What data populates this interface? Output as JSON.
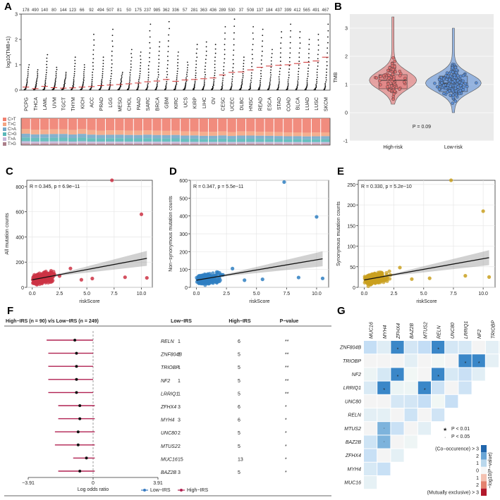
{
  "panels": {
    "A": "A",
    "B": "B",
    "C": "C",
    "D": "D",
    "E": "E",
    "F": "F",
    "G": "G"
  },
  "chart_data": [
    {
      "id": "A",
      "type": "scatter",
      "ylabel": "log10(TMB+1)",
      "ylim": [
        0,
        3
      ],
      "yticks": [
        "0",
        "1",
        "2",
        "3"
      ],
      "highlight": "KIRC",
      "categories": [
        "PCPG",
        "THCA",
        "LAML",
        "UVM",
        "TGCT",
        "THYM",
        "KICH",
        "ACC",
        "PRAD",
        "LGG",
        "MESO",
        "CHOL",
        "PAAD",
        "SARC",
        "BRCA",
        "GBM",
        "KIRC",
        "UCS",
        "KIRP",
        "LIHC",
        "OV",
        "CESC",
        "UCEC",
        "DLBC",
        "HNSC",
        "READ",
        "ESCA",
        "STAD",
        "COAD",
        "BLCA",
        "LUAD",
        "LUSC",
        "SKCM"
      ],
      "counts": [
        "178",
        "490",
        "140",
        "80",
        "144",
        "123",
        "66",
        "92",
        "494",
        "507",
        "81",
        "50",
        "175",
        "237",
        "985",
        "362",
        "336",
        "57",
        "281",
        "363",
        "436",
        "289",
        "530",
        "37",
        "508",
        "137",
        "184",
        "437",
        "399",
        "412",
        "565",
        "491",
        "467"
      ],
      "medians": [
        0.12,
        0.06,
        0.15,
        0.1,
        0.08,
        0.09,
        0.12,
        0.14,
        0.18,
        0.2,
        0.22,
        0.25,
        0.28,
        0.33,
        0.36,
        0.42,
        0.35,
        0.4,
        0.42,
        0.45,
        0.48,
        0.6,
        0.7,
        0.72,
        0.8,
        0.9,
        0.95,
        0.98,
        1.0,
        1.05,
        1.1,
        1.15,
        1.3
      ],
      "maxes": [
        1.0,
        0.8,
        1.4,
        0.9,
        0.7,
        1.3,
        1.0,
        2.2,
        1.3,
        2.4,
        0.7,
        1.6,
        1.5,
        2.6,
        1.9,
        2.7,
        1.5,
        1.1,
        1.8,
        1.9,
        1.8,
        2.5,
        2.8,
        1.3,
        2.5,
        2.4,
        1.6,
        2.3,
        2.6,
        2.3,
        2.0,
        2.2,
        2.6
      ],
      "mut_legend": [
        "C>T",
        "T>C",
        "C>A",
        "C>G",
        "T>A",
        "T>G"
      ],
      "mut_colors": [
        "#f08070",
        "#f4a582",
        "#77a9c8",
        "#59b8b8",
        "#c6b5d8",
        "#ab7f8a"
      ]
    },
    {
      "id": "B",
      "type": "violin",
      "ylabel": "TMB",
      "ylim": [
        -1,
        3.5
      ],
      "yticks": [
        "-1",
        "0",
        "1",
        "2",
        "3"
      ],
      "categories": [
        "High-risk",
        "Low-risk"
      ],
      "colors": [
        "#e07070",
        "#5b8ed6"
      ],
      "medians": [
        1.15,
        1.05
      ],
      "q1": [
        0.85,
        0.75
      ],
      "q3": [
        1.35,
        1.3
      ],
      "min": [
        0.3,
        0.0
      ],
      "max": [
        3.4,
        3.0
      ],
      "pvalue": "P = 0.09"
    },
    {
      "id": "C",
      "type": "scatter",
      "ylabel": "All mutation counts",
      "xlabel": "riskScore",
      "annotation": "R = 0.345, p = 6.9e−11",
      "color": "#cc3344",
      "xlim": [
        -0.5,
        11
      ],
      "ylim": [
        0,
        850
      ],
      "xticks": [
        "0.0",
        "2.5",
        "5.0",
        "7.5",
        "10.0"
      ],
      "xtick_vals": [
        0,
        2.5,
        5,
        7.5,
        10
      ],
      "yticks": [
        "0",
        "200",
        "400",
        "600",
        "800"
      ],
      "ytick_vals": [
        0,
        200,
        400,
        600,
        800
      ],
      "fit": [
        [
          0,
          60
        ],
        [
          10.5,
          230
        ]
      ],
      "outliers": [
        [
          7.3,
          850
        ],
        [
          10.0,
          580
        ],
        [
          10.5,
          75
        ],
        [
          8.5,
          80
        ],
        [
          5.5,
          70
        ],
        [
          4.5,
          60
        ],
        [
          3.5,
          150
        ],
        [
          2.5,
          90
        ]
      ]
    },
    {
      "id": "D",
      "type": "scatter",
      "ylabel": "Non−synonymous mutation counts",
      "xlabel": "riskScore",
      "annotation": "R = 0.347, p = 5.5e−11",
      "color": "#2f7fc1",
      "xlim": [
        -0.5,
        11
      ],
      "ylim": [
        0,
        600
      ],
      "xticks": [
        "0.0",
        "2.5",
        "5.0",
        "7.5",
        "10.0"
      ],
      "xtick_vals": [
        0,
        2.5,
        5,
        7.5,
        10
      ],
      "yticks": [
        "0",
        "100",
        "200",
        "300",
        "400",
        "500",
        "600"
      ],
      "ytick_vals": [
        0,
        100,
        200,
        300,
        400,
        500,
        600
      ],
      "fit": [
        [
          0,
          40
        ],
        [
          10.5,
          160
        ]
      ],
      "outliers": [
        [
          7.3,
          590
        ],
        [
          10.0,
          395
        ],
        [
          10.5,
          50
        ],
        [
          8.5,
          55
        ],
        [
          5.5,
          45
        ],
        [
          4.0,
          40
        ],
        [
          3.0,
          105
        ],
        [
          2.2,
          70
        ]
      ]
    },
    {
      "id": "E",
      "type": "scatter",
      "ylabel": "Synonymous mutation counts",
      "xlabel": "riskScore",
      "annotation": "R = 0.330, p = 5.2e−10",
      "color": "#c9a020",
      "xlim": [
        -0.5,
        11
      ],
      "ylim": [
        0,
        260
      ],
      "xticks": [
        "0.0",
        "2.5",
        "5.0",
        "7.5",
        "10.0"
      ],
      "xtick_vals": [
        0,
        2.5,
        5,
        7.5,
        10
      ],
      "yticks": [
        "0",
        "50",
        "100",
        "150",
        "200",
        "250"
      ],
      "ytick_vals": [
        0,
        50,
        100,
        150,
        200,
        250
      ],
      "fit": [
        [
          0,
          18
        ],
        [
          10.5,
          72
        ]
      ],
      "outliers": [
        [
          7.3,
          260
        ],
        [
          10.0,
          185
        ],
        [
          10.5,
          25
        ],
        [
          8.5,
          28
        ],
        [
          5.5,
          22
        ],
        [
          4.0,
          20
        ],
        [
          3.0,
          48
        ],
        [
          2.2,
          30
        ]
      ]
    },
    {
      "id": "F",
      "type": "forest",
      "header": "High−IRS (n = 90) v/s Low−IRS (n = 249)",
      "columns": [
        "Low−IRS",
        "High−IRS",
        "P−value"
      ],
      "genes": [
        "RELN",
        "ZNF804B",
        "TRIOBP",
        "NF2",
        "LRRIQ1",
        "ZFHX4",
        "MYH4",
        "UNC80",
        "MTUS2",
        "MUC16",
        "BAZ2B"
      ],
      "low": [
        "1",
        "1",
        "1",
        "1",
        "1",
        "3",
        "3",
        "2",
        "2",
        "15",
        "3"
      ],
      "high": [
        "6",
        "5",
        "5",
        "5",
        "5",
        "6",
        "6",
        "5",
        "5",
        "13",
        "5"
      ],
      "p": [
        "**",
        "**",
        "**",
        "**",
        "**",
        "*",
        "*",
        "*",
        "*",
        "*",
        "*"
      ],
      "log_or": [
        -1.1,
        -1.0,
        -1.0,
        -1.0,
        -1.0,
        -0.8,
        -0.8,
        -0.9,
        -0.9,
        -0.4,
        -0.8
      ],
      "ci_low": [
        -2.8,
        -2.7,
        -2.7,
        -2.7,
        -2.7,
        -2.1,
        -2.1,
        -2.3,
        -2.3,
        -1.2,
        -2.1
      ],
      "ci_high": [
        0.0,
        0.0,
        0.0,
        0.0,
        0.0,
        0.1,
        0.1,
        0.1,
        0.1,
        0.1,
        0.1
      ],
      "xlim": [
        -3.91,
        3.91
      ],
      "xticks": [
        "−3.91",
        "0",
        "3.91"
      ],
      "xlabel": "Log odds ratio",
      "legend": [
        "Low−IRS",
        "High−IRS"
      ],
      "legend_colors": [
        "#3a7cc2",
        "#b02050"
      ]
    },
    {
      "id": "G",
      "type": "heatmap",
      "col_genes": [
        "MUC16",
        "MYH4",
        "ZFHX4",
        "BAZ2B",
        "MTUS2",
        "RELN",
        "UNC80",
        "LRRIQ1",
        "NF2",
        "TRIOBP",
        "ZNF804B"
      ],
      "row_genes": [
        "ZNF804B",
        "TRIOBP",
        "NF2",
        "LRRIQ1",
        "UNC80",
        "RELN",
        "MTUS2",
        "BAZ2B",
        "ZFHX4",
        "MYH4",
        "MUC16"
      ],
      "legend_star": "P < 0.01",
      "legend_dot": "P < 0.05",
      "scale_labels": [
        "(Co−occurence) > 3",
        "2",
        "1",
        "0",
        "1",
        "2",
        "(Mutually exclusive) > 3"
      ],
      "scale_title": "−log10(P−value)",
      "stars": [
        [
          0,
          2
        ],
        [
          0,
          5
        ],
        [
          1,
          7
        ],
        [
          1,
          8
        ],
        [
          2,
          2
        ],
        [
          2,
          5
        ],
        [
          3,
          1
        ],
        [
          3,
          4
        ]
      ],
      "dots": [
        [
          6,
          1
        ],
        [
          7,
          1
        ]
      ]
    }
  ]
}
